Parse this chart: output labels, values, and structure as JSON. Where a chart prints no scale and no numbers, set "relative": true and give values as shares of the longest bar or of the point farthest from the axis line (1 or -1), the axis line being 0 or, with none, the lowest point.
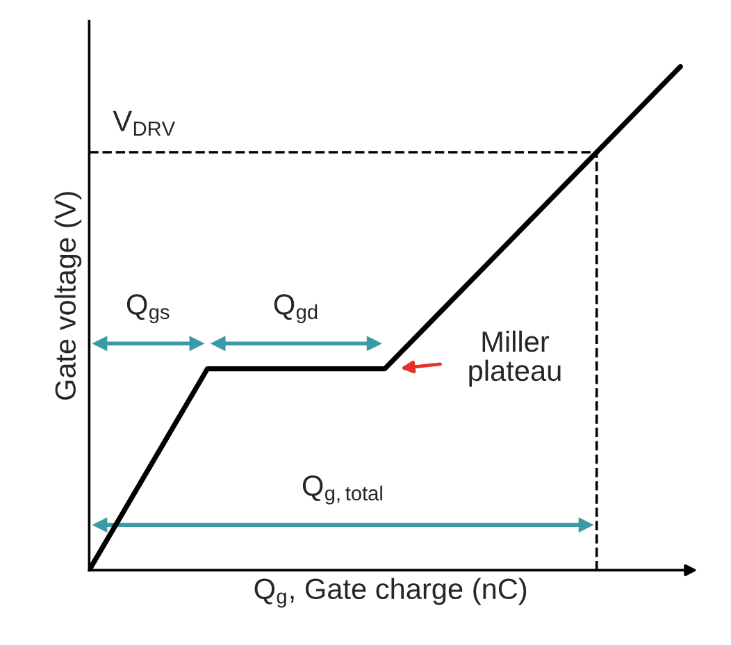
{
  "chart_data": {
    "type": "line",
    "relative": true,
    "xlabel": "Q$_{g}$, Gate charge (nC)",
    "ylabel": "Gate voltage (V)",
    "categories": [
      null,
      null,
      null,
      null,
      null,
      null,
      null,
      null,
      null,
      null,
      null
    ],
    "series": [
      {
        "color": "#000000",
        "values": [
          0,
          0.2,
          0.4,
          0.4,
          0.4,
          0.4,
          0.52,
          0.64,
          0.76,
          0.88,
          1.0
        ]
      }
    ],
    "ref_lines": [
      {
        "axis": "y",
        "value": 0.83,
        "label": "V$_{DRV}$",
        "line_style": "dashed",
        "color": "#000000"
      }
    ],
    "annotations": [
      "Q$_{gs}$",
      "Q$_{gd}$",
      "Q$_{g,total}$",
      "Miller\nplateau"
    ],
    "marker": "none",
    "line_style": "solid"
  }
}
